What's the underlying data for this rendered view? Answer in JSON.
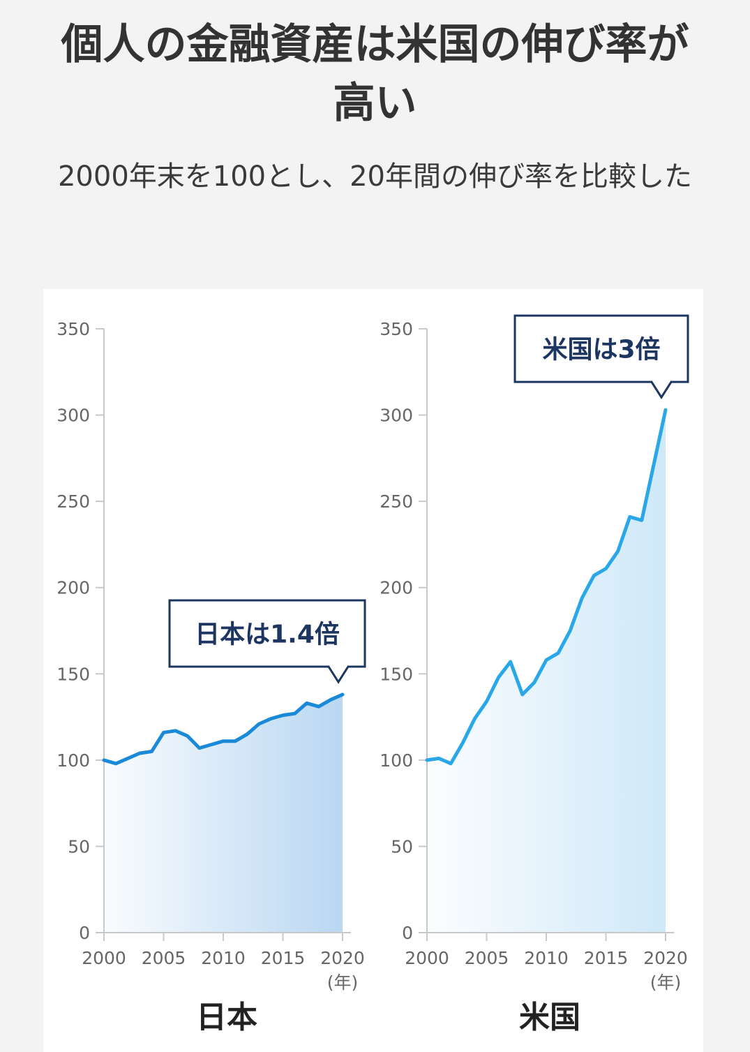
{
  "title": "個人の金融資産は米国の伸び率が高い",
  "subtitle": "2000年末を100とし、20年間の伸び率を比較した",
  "chart_data": [
    {
      "type": "area",
      "title": "日本",
      "x_unit": "(年)",
      "x": [
        2000,
        2001,
        2002,
        2003,
        2004,
        2005,
        2006,
        2007,
        2008,
        2009,
        2010,
        2011,
        2012,
        2013,
        2014,
        2015,
        2016,
        2017,
        2018,
        2019,
        2020
      ],
      "x_ticks": [
        "2000",
        "2005",
        "2010",
        "2015",
        "2020"
      ],
      "values": [
        100,
        98,
        101,
        104,
        105,
        116,
        117,
        114,
        107,
        109,
        111,
        111,
        115,
        121,
        124,
        126,
        127,
        133,
        131,
        135,
        138
      ],
      "ylim": [
        0,
        350
      ],
      "y_ticks": [
        "0",
        "50",
        "100",
        "150",
        "200",
        "250",
        "300",
        "350"
      ],
      "annotation": "日本は1.4倍",
      "grid": false,
      "line_color": "#1a8ad8",
      "fill_color": "#b9d7f2"
    },
    {
      "type": "area",
      "title": "米国",
      "x_unit": "(年)",
      "x": [
        2000,
        2001,
        2002,
        2003,
        2004,
        2005,
        2006,
        2007,
        2008,
        2009,
        2010,
        2011,
        2012,
        2013,
        2014,
        2015,
        2016,
        2017,
        2018,
        2019,
        2020
      ],
      "x_ticks": [
        "2000",
        "2005",
        "2010",
        "2015",
        "2020"
      ],
      "values": [
        100,
        101,
        98,
        110,
        124,
        134,
        148,
        157,
        138,
        145,
        158,
        162,
        175,
        194,
        207,
        211,
        221,
        241,
        239,
        271,
        303
      ],
      "ylim": [
        0,
        350
      ],
      "y_ticks": [
        "0",
        "50",
        "100",
        "150",
        "200",
        "250",
        "300",
        "350"
      ],
      "annotation": "米国は3倍",
      "grid": false,
      "line_color": "#29a7e8",
      "fill_color": "#cfe8f8"
    }
  ]
}
